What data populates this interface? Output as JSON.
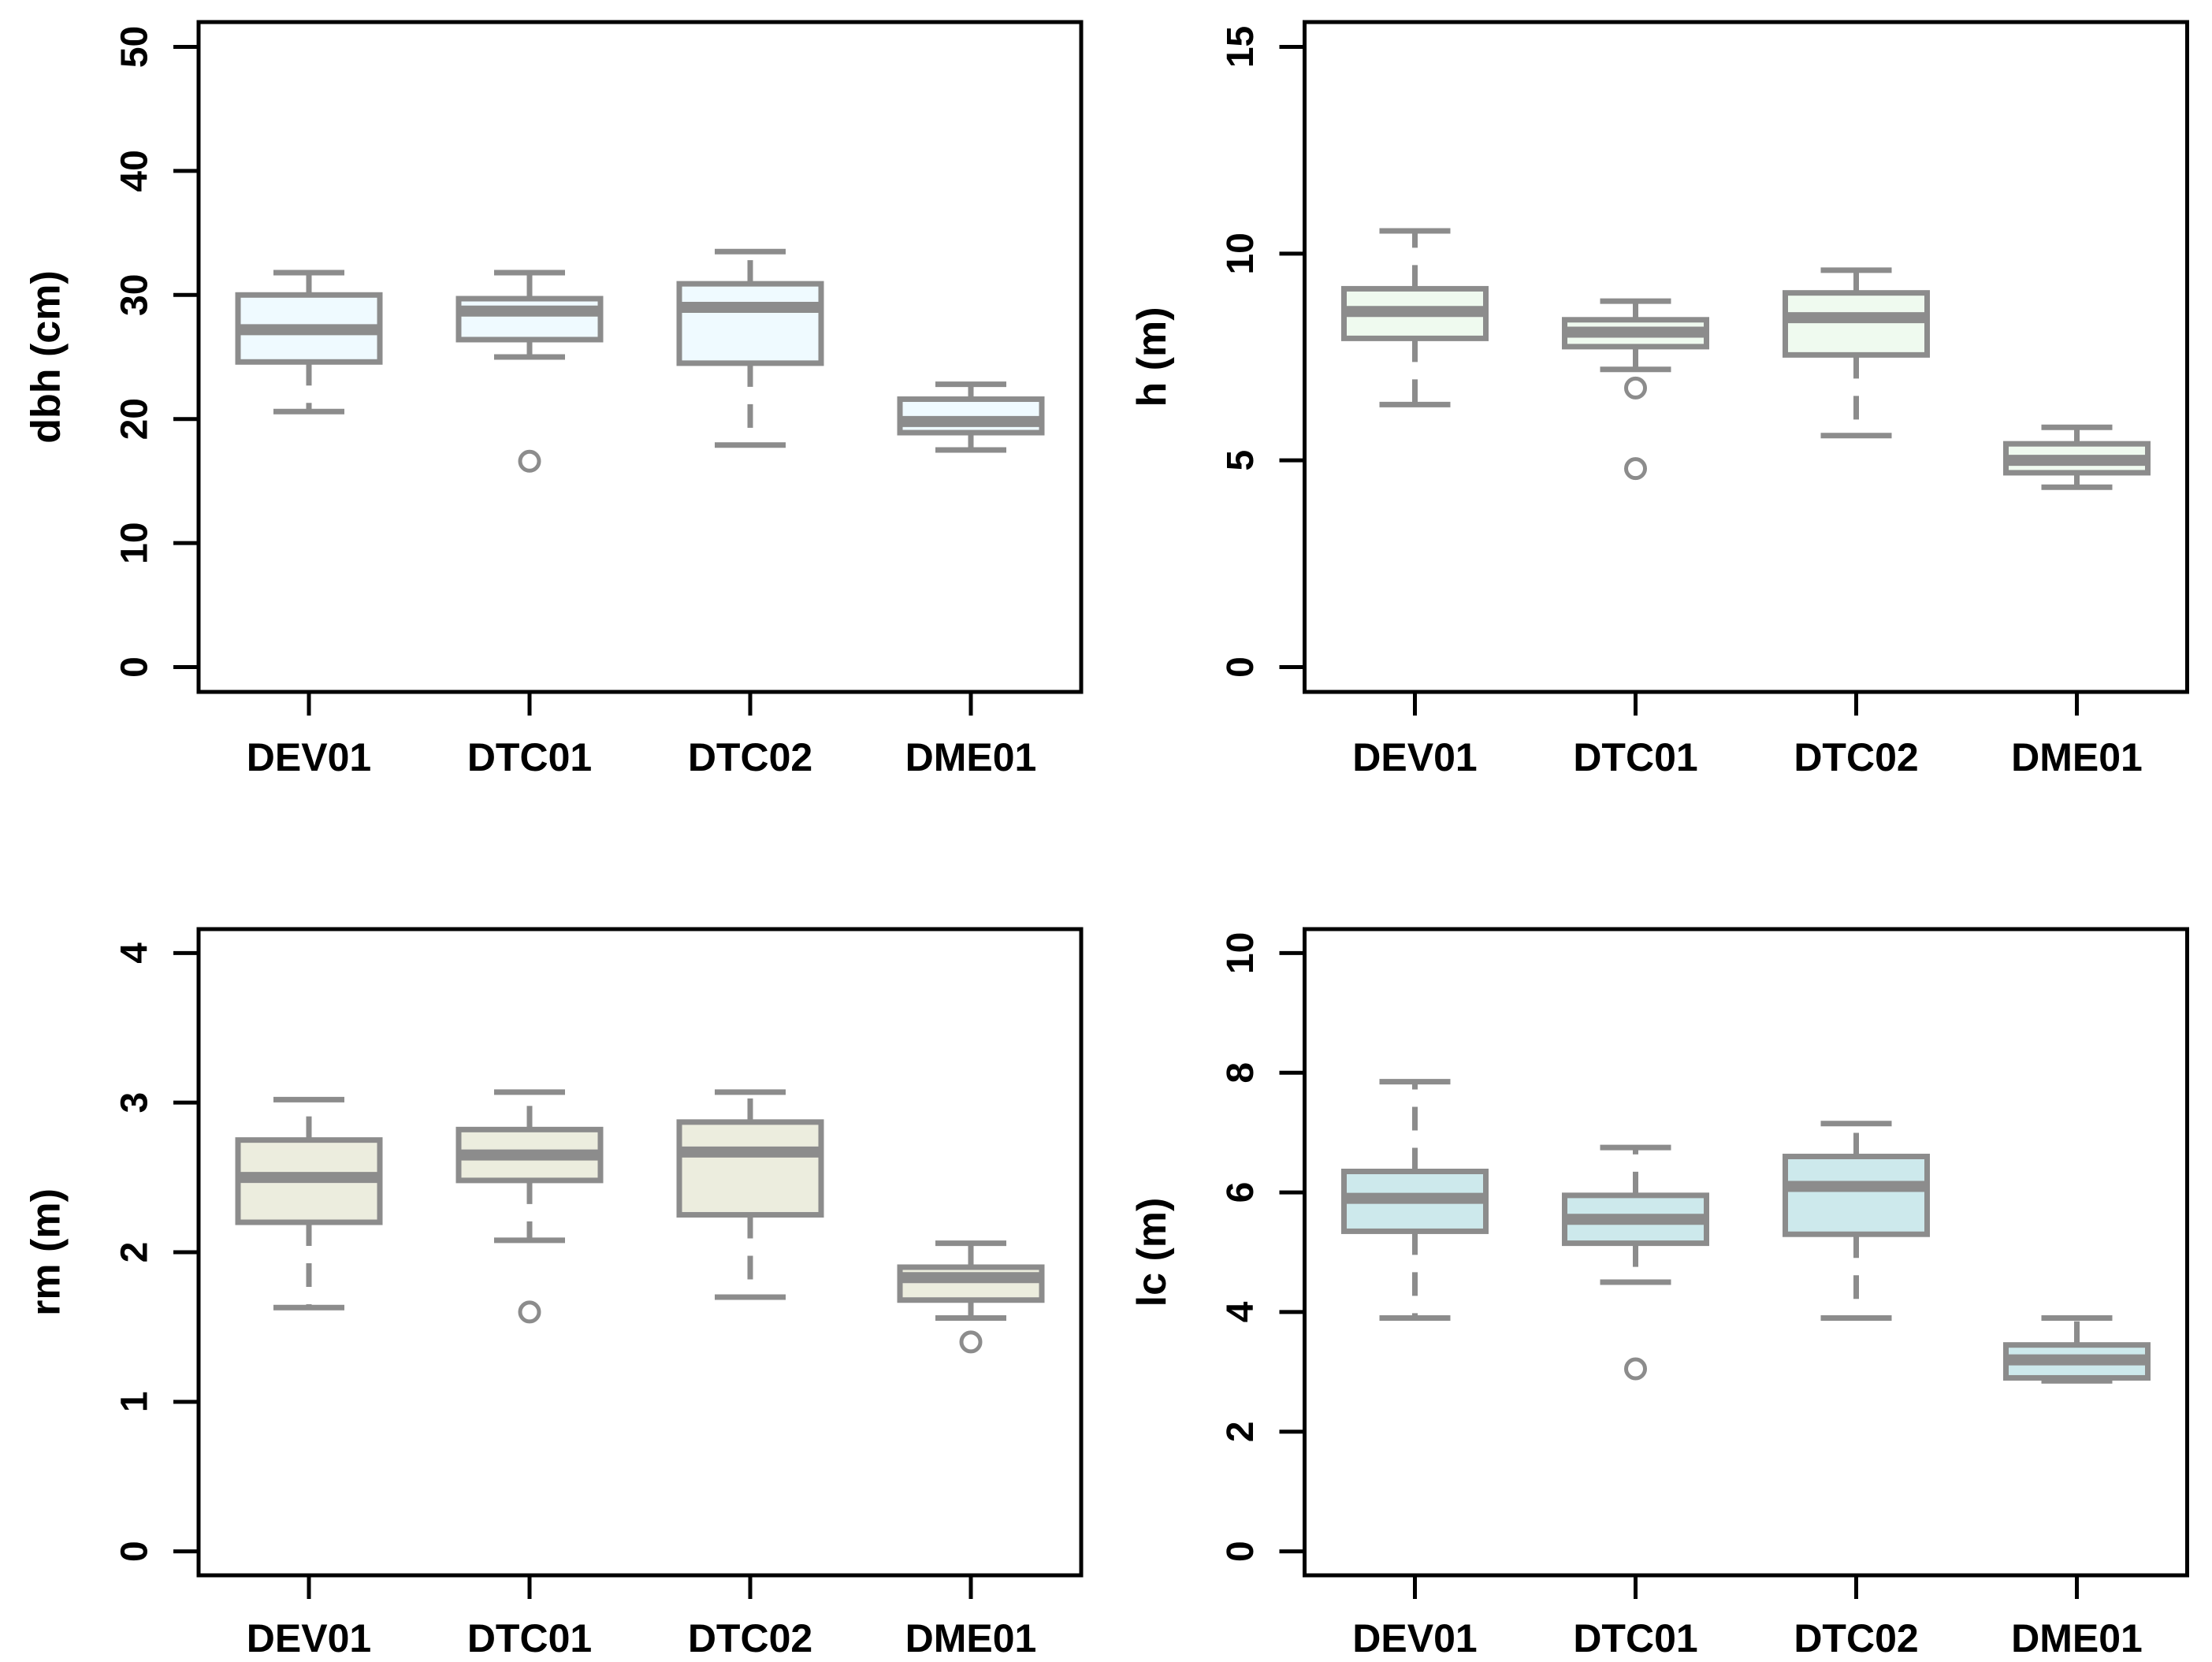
{
  "figure": {
    "background": "#ffffff",
    "rows": 2,
    "cols": 2,
    "description_visible_text_only": true
  },
  "styles": {
    "axis_color": "#000000",
    "text_color": "#000000",
    "box_line_color": "#8c8c8c",
    "median_color": "#8c8c8c",
    "whisker_color": "#8c8c8c",
    "outlier_color": "#8c8c8c"
  },
  "chart_data": [
    {
      "type": "boxplot",
      "panel": "top-left",
      "title": "",
      "xlabel": "",
      "ylabel": "dbh (cm)",
      "ylim": [
        0,
        50
      ],
      "yticks": [
        0,
        10,
        20,
        30,
        40,
        50
      ],
      "grid": false,
      "legend": "none",
      "box_fill": "#EFFAFF",
      "categories": [
        "DEV01",
        "DTC01",
        "DTC02",
        "DME01"
      ],
      "series": [
        {
          "category": "DEV01",
          "whisker_low": 20.6,
          "q1": 24.6,
          "median": 27.2,
          "q3": 30.0,
          "whisker_high": 31.8,
          "outliers": []
        },
        {
          "category": "DTC01",
          "whisker_low": 25.0,
          "q1": 26.4,
          "median": 28.7,
          "q3": 29.7,
          "whisker_high": 31.8,
          "outliers": [
            16.6
          ]
        },
        {
          "category": "DTC02",
          "whisker_low": 17.9,
          "q1": 24.5,
          "median": 29.0,
          "q3": 30.9,
          "whisker_high": 33.5,
          "outliers": []
        },
        {
          "category": "DME01",
          "whisker_low": 17.5,
          "q1": 18.9,
          "median": 19.8,
          "q3": 21.6,
          "whisker_high": 22.8,
          "outliers": []
        }
      ]
    },
    {
      "type": "boxplot",
      "panel": "top-right",
      "title": "",
      "xlabel": "",
      "ylabel": "h (m)",
      "ylim": [
        0,
        15
      ],
      "yticks": [
        0,
        5,
        10,
        15
      ],
      "grid": false,
      "legend": "none",
      "box_fill": "#EFFAEF",
      "categories": [
        "DEV01",
        "DTC01",
        "DTC02",
        "DME01"
      ],
      "series": [
        {
          "category": "DEV01",
          "whisker_low": 6.35,
          "q1": 7.95,
          "median": 8.6,
          "q3": 9.15,
          "whisker_high": 10.55,
          "outliers": []
        },
        {
          "category": "DTC01",
          "whisker_low": 7.2,
          "q1": 7.75,
          "median": 8.1,
          "q3": 8.4,
          "whisker_high": 8.85,
          "outliers": [
            6.75,
            4.8
          ]
        },
        {
          "category": "DTC02",
          "whisker_low": 5.6,
          "q1": 7.55,
          "median": 8.45,
          "q3": 9.05,
          "whisker_high": 9.6,
          "outliers": []
        },
        {
          "category": "DME01",
          "whisker_low": 4.35,
          "q1": 4.7,
          "median": 5.0,
          "q3": 5.4,
          "whisker_high": 5.8,
          "outliers": []
        }
      ]
    },
    {
      "type": "boxplot",
      "panel": "bottom-left",
      "title": "",
      "xlabel": "",
      "ylabel": "rm (m)",
      "ylim": [
        0,
        4
      ],
      "yticks": [
        0,
        1,
        2,
        3,
        4
      ],
      "grid": false,
      "legend": "none",
      "box_fill": "#ECEDDE",
      "categories": [
        "DEV01",
        "DTC01",
        "DTC02",
        "DME01"
      ],
      "series": [
        {
          "category": "DEV01",
          "whisker_low": 1.63,
          "q1": 2.2,
          "median": 2.5,
          "q3": 2.75,
          "whisker_high": 3.02,
          "outliers": []
        },
        {
          "category": "DTC01",
          "whisker_low": 2.08,
          "q1": 2.48,
          "median": 2.65,
          "q3": 2.82,
          "whisker_high": 3.07,
          "outliers": [
            1.6
          ]
        },
        {
          "category": "DTC02",
          "whisker_low": 1.7,
          "q1": 2.25,
          "median": 2.67,
          "q3": 2.87,
          "whisker_high": 3.07,
          "outliers": []
        },
        {
          "category": "DME01",
          "whisker_low": 1.56,
          "q1": 1.68,
          "median": 1.83,
          "q3": 1.9,
          "whisker_high": 2.06,
          "outliers": [
            1.4
          ]
        }
      ]
    },
    {
      "type": "boxplot",
      "panel": "bottom-right",
      "title": "",
      "xlabel": "",
      "ylabel": "lc (m)",
      "ylim": [
        0,
        10
      ],
      "yticks": [
        0,
        2,
        4,
        6,
        8,
        10
      ],
      "grid": false,
      "legend": "none",
      "box_fill": "#CDE9EC",
      "categories": [
        "DEV01",
        "DTC01",
        "DTC02",
        "DME01"
      ],
      "series": [
        {
          "category": "DEV01",
          "whisker_low": 3.9,
          "q1": 5.35,
          "median": 5.9,
          "q3": 6.35,
          "whisker_high": 7.85,
          "outliers": []
        },
        {
          "category": "DTC01",
          "whisker_low": 4.5,
          "q1": 5.15,
          "median": 5.55,
          "q3": 5.95,
          "whisker_high": 6.75,
          "outliers": [
            3.05
          ]
        },
        {
          "category": "DTC02",
          "whisker_low": 3.9,
          "q1": 5.3,
          "median": 6.1,
          "q3": 6.6,
          "whisker_high": 7.15,
          "outliers": []
        },
        {
          "category": "DME01",
          "whisker_low": 2.85,
          "q1": 2.9,
          "median": 3.2,
          "q3": 3.45,
          "whisker_high": 3.9,
          "outliers": []
        }
      ]
    }
  ]
}
